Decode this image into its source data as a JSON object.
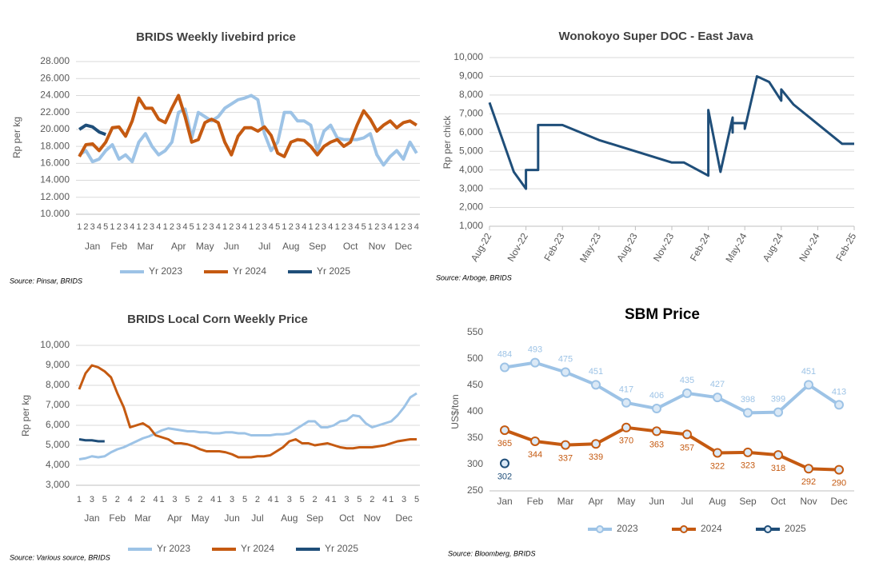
{
  "chart_data": [
    {
      "type": "line",
      "title": "BRIDS Weekly livebird price",
      "y_label": "Rp per kg",
      "source": "Source: Pinsar, BRIDS",
      "categories": [
        "1",
        "2",
        "3",
        "4",
        "5",
        "1",
        "2",
        "3",
        "4",
        "1",
        "2",
        "3",
        "4",
        "1",
        "2",
        "3",
        "4",
        "5",
        "1",
        "2",
        "3",
        "4",
        "1",
        "2",
        "3",
        "4",
        "1",
        "2",
        "3",
        "4",
        "5",
        "1",
        "2",
        "3",
        "4",
        "1",
        "2",
        "3",
        "4",
        "1",
        "2",
        "3",
        "4",
        "5",
        "1",
        "2",
        "3",
        "4",
        "1",
        "2",
        "3",
        "4"
      ],
      "month_labels": [
        null,
        null,
        "Jan",
        null,
        null,
        null,
        "Feb",
        null,
        null,
        null,
        "Mar",
        null,
        null,
        null,
        null,
        "Apr",
        null,
        null,
        null,
        "May",
        null,
        null,
        null,
        "Jun",
        null,
        null,
        null,
        null,
        "Jul",
        null,
        null,
        null,
        "Aug",
        null,
        null,
        null,
        "Sep",
        null,
        null,
        null,
        null,
        "Oct",
        null,
        null,
        null,
        "Nov",
        null,
        null,
        null,
        "Dec",
        null,
        null
      ],
      "series": [
        {
          "name": "Yr 2023",
          "color": "#9dc3e6",
          "values": [
            17000,
            17500,
            16200,
            16500,
            17500,
            18200,
            16500,
            17000,
            16200,
            18500,
            19500,
            18000,
            17000,
            17500,
            18500,
            22000,
            22400,
            19000,
            22000,
            21500,
            21000,
            21500,
            22500,
            23000,
            23500,
            23700,
            24000,
            23500,
            19500,
            17500,
            18500,
            22000,
            22000,
            21000,
            21000,
            20500,
            17500,
            19800,
            20500,
            19000,
            18800,
            18800,
            18800,
            19000,
            19500,
            17000,
            15800,
            16800,
            17500,
            16500,
            18500,
            17200
          ]
        },
        {
          "name": "Yr 2024",
          "color": "#c55a11",
          "values": [
            16800,
            18200,
            18300,
            17500,
            18500,
            20200,
            20300,
            19200,
            21000,
            23700,
            22500,
            22500,
            21200,
            20800,
            22500,
            24000,
            21500,
            18500,
            18800,
            20800,
            21200,
            20800,
            18500,
            17000,
            19200,
            20200,
            20200,
            19800,
            20300,
            19300,
            17200,
            16800,
            18500,
            18800,
            18700,
            18000,
            17000,
            18000,
            18500,
            18800,
            18000,
            18500,
            20500,
            22200,
            21200,
            19800,
            20500,
            21000,
            20200,
            20800,
            21000,
            20500
          ]
        },
        {
          "name": "Yr 2025",
          "color": "#1f4e79",
          "values": [
            20000,
            20500,
            20300,
            19700,
            19400,
            null,
            null,
            null,
            null,
            null,
            null,
            null,
            null,
            null,
            null,
            null,
            null,
            null,
            null,
            null,
            null,
            null,
            null,
            null,
            null,
            null,
            null,
            null,
            null,
            null,
            null,
            null,
            null,
            null,
            null,
            null,
            null,
            null,
            null,
            null,
            null,
            null,
            null,
            null,
            null,
            null,
            null,
            null,
            null,
            null,
            null,
            null
          ]
        }
      ],
      "ylim": [
        10000,
        28000
      ],
      "yticks": [
        {
          "value": 10000,
          "label": "10.000"
        },
        {
          "value": 12000,
          "label": "12.000"
        },
        {
          "value": 14000,
          "label": "14.000"
        },
        {
          "value": 16000,
          "label": "16.000"
        },
        {
          "value": 18000,
          "label": "18.000"
        },
        {
          "value": 20000,
          "label": "20.000"
        },
        {
          "value": 22000,
          "label": "22.000"
        },
        {
          "value": 24000,
          "label": "24.000"
        },
        {
          "value": 26000,
          "label": "26.000"
        },
        {
          "value": 28000,
          "label": "28.000"
        }
      ],
      "grid": true,
      "legend": "bottom"
    },
    {
      "type": "line",
      "title": "Wonokoyo Super DOC - East Java",
      "y_label": "Rp per chick",
      "source": "Source: Arboge, BRIDS",
      "color": "#1f4e79",
      "x": [
        "2022-08",
        "2022-10",
        "2022-11",
        "2022-11",
        "2022-11",
        "2022-12",
        "2022-12",
        "2023-02",
        "2023-05",
        "2023-08",
        "2023-11",
        "2023-12",
        "2024-02",
        "2024-02",
        "2024-03",
        "2024-03",
        "2024-04",
        "2024-04",
        "2024-04",
        "2024-05",
        "2024-05",
        "2024-06",
        "2024-06",
        "2024-07",
        "2024-07",
        "2024-08",
        "2024-08",
        "2024-09",
        "2025-01",
        "2025-02"
      ],
      "values": [
        7600,
        3900,
        3000,
        3200,
        4000,
        4000,
        6400,
        6400,
        5600,
        5000,
        4400,
        4400,
        3700,
        7200,
        3900,
        3900,
        6800,
        6000,
        6500,
        6500,
        6200,
        9000,
        9000,
        8700,
        8700,
        7700,
        8300,
        7500,
        5400,
        5400
      ],
      "xlim": [
        "2022-08",
        "2025-02"
      ],
      "xticks": [
        {
          "value": "2022-08",
          "label": "Aug-22"
        },
        {
          "value": "2022-11",
          "label": "Nov-22"
        },
        {
          "value": "2023-02",
          "label": "Feb-23"
        },
        {
          "value": "2023-05",
          "label": "May-23"
        },
        {
          "value": "2023-08",
          "label": "Aug-23"
        },
        {
          "value": "2023-11",
          "label": "Nov-23"
        },
        {
          "value": "2024-02",
          "label": "Feb-24"
        },
        {
          "value": "2024-05",
          "label": "May-24"
        },
        {
          "value": "2024-08",
          "label": "Aug-24"
        },
        {
          "value": "2024-11",
          "label": "Nov-24"
        },
        {
          "value": "2025-02",
          "label": "Feb-25"
        }
      ],
      "ylim": [
        1000,
        10000
      ],
      "yticks": [
        {
          "value": 1000,
          "label": "1,000"
        },
        {
          "value": 2000,
          "label": "2,000"
        },
        {
          "value": 3000,
          "label": "3,000"
        },
        {
          "value": 4000,
          "label": "4,000"
        },
        {
          "value": 5000,
          "label": "5,000"
        },
        {
          "value": 6000,
          "label": "6,000"
        },
        {
          "value": 7000,
          "label": "7,000"
        },
        {
          "value": 8000,
          "label": "8,000"
        },
        {
          "value": 9000,
          "label": "9,000"
        },
        {
          "value": 10000,
          "label": "10,000"
        }
      ],
      "grid": true
    },
    {
      "type": "line",
      "title": "BRIDS Local Corn Weekly Price",
      "y_label": "Rp per kg",
      "source": "Source: Various source, BRIDS",
      "categories": [
        "1",
        null,
        "3",
        null,
        "5",
        null,
        "2",
        null,
        "4",
        null,
        "2",
        null,
        "4",
        "1",
        null,
        "3",
        null,
        "5",
        null,
        "2",
        null,
        "4",
        "1",
        null,
        "3",
        null,
        "5",
        null,
        "2",
        null,
        "4",
        "1",
        null,
        "3",
        null,
        "5",
        null,
        "2",
        null,
        "4",
        "1",
        null,
        "3",
        null,
        "5",
        null,
        "2",
        null,
        "4",
        "1",
        null,
        "3",
        null,
        "5"
      ],
      "month_labels": [
        null,
        null,
        "Jan",
        null,
        null,
        null,
        "Feb",
        null,
        null,
        null,
        "Mar",
        null,
        null,
        null,
        null,
        "Apr",
        null,
        null,
        null,
        "May",
        null,
        null,
        null,
        null,
        "Jun",
        null,
        null,
        null,
        "Jul",
        null,
        null,
        null,
        null,
        "Aug",
        null,
        null,
        null,
        "Sep",
        null,
        null,
        null,
        null,
        "Oct",
        null,
        null,
        null,
        "Nov",
        null,
        null,
        null,
        null,
        "Dec",
        null,
        null
      ],
      "series": [
        {
          "name": "Yr 2023",
          "color": "#9dc3e6",
          "values": [
            4300,
            4350,
            4450,
            4400,
            4450,
            4650,
            4800,
            4900,
            5050,
            5200,
            5350,
            5450,
            5600,
            5750,
            5850,
            5800,
            5750,
            5700,
            5700,
            5650,
            5650,
            5600,
            5600,
            5650,
            5650,
            5600,
            5600,
            5500,
            5500,
            5500,
            5500,
            5550,
            5550,
            5600,
            5800,
            6000,
            6200,
            6200,
            5900,
            5900,
            6000,
            6200,
            6250,
            6500,
            6450,
            6100,
            5900,
            6000,
            6100,
            6200,
            6500,
            6900,
            7400,
            7600
          ]
        },
        {
          "name": "Yr 2024",
          "color": "#c55a11",
          "values": [
            7800,
            8600,
            9000,
            8900,
            8700,
            8400,
            7600,
            6900,
            5900,
            6000,
            6100,
            5900,
            5500,
            5400,
            5300,
            5100,
            5100,
            5050,
            4950,
            4800,
            4700,
            4700,
            4700,
            4650,
            4550,
            4400,
            4400,
            4400,
            4450,
            4450,
            4500,
            4700,
            4900,
            5200,
            5300,
            5100,
            5100,
            5000,
            5050,
            5100,
            5000,
            4900,
            4850,
            4850,
            4900,
            4900,
            4900,
            4950,
            5000,
            5100,
            5200,
            5250,
            5300,
            5300
          ]
        },
        {
          "name": "Yr 2025",
          "color": "#1f4e79",
          "values": [
            5300,
            5250,
            5250,
            5200,
            5200,
            null,
            null,
            null,
            null,
            null,
            null,
            null,
            null,
            null,
            null,
            null,
            null,
            null,
            null,
            null,
            null,
            null,
            null,
            null,
            null,
            null,
            null,
            null,
            null,
            null,
            null,
            null,
            null,
            null,
            null,
            null,
            null,
            null,
            null,
            null,
            null,
            null,
            null,
            null,
            null,
            null,
            null,
            null,
            null,
            null,
            null,
            null,
            null,
            null
          ]
        }
      ],
      "ylim": [
        3000,
        10000
      ],
      "yticks": [
        {
          "value": 3000,
          "label": "3,000"
        },
        {
          "value": 4000,
          "label": "4,000"
        },
        {
          "value": 5000,
          "label": "5,000"
        },
        {
          "value": 6000,
          "label": "6,000"
        },
        {
          "value": 7000,
          "label": "7,000"
        },
        {
          "value": 8000,
          "label": "8,000"
        },
        {
          "value": 9000,
          "label": "9,000"
        },
        {
          "value": 10000,
          "label": "10,000"
        }
      ],
      "grid": true,
      "legend": "bottom"
    },
    {
      "type": "line",
      "title": "SBM Price",
      "y_label": "US$/ton",
      "source": "Source: Bloomberg, BRIDS",
      "categories": [
        "Jan",
        "Feb",
        "Mar",
        "Apr",
        "May",
        "Jun",
        "Jul",
        "Aug",
        "Sep",
        "Oct",
        "Nov",
        "Dec"
      ],
      "series": [
        {
          "name": "2023",
          "color": "#9dc3e6",
          "values": [
            484,
            493,
            475,
            451,
            417,
            406,
            435,
            427,
            398,
            399,
            451,
            413
          ]
        },
        {
          "name": "2024",
          "color": "#c55a11",
          "values": [
            365,
            344,
            337,
            339,
            370,
            363,
            357,
            322,
            323,
            318,
            292,
            290
          ]
        },
        {
          "name": "2025",
          "color": "#1f4e79",
          "values": [
            302,
            null,
            null,
            null,
            null,
            null,
            null,
            null,
            null,
            null,
            null,
            null
          ]
        }
      ],
      "ylim": [
        250,
        550
      ],
      "yticks": [
        250,
        300,
        350,
        400,
        450,
        500,
        550
      ],
      "grid": false,
      "markers": true,
      "data_labels": true,
      "legend": "bottom"
    }
  ]
}
